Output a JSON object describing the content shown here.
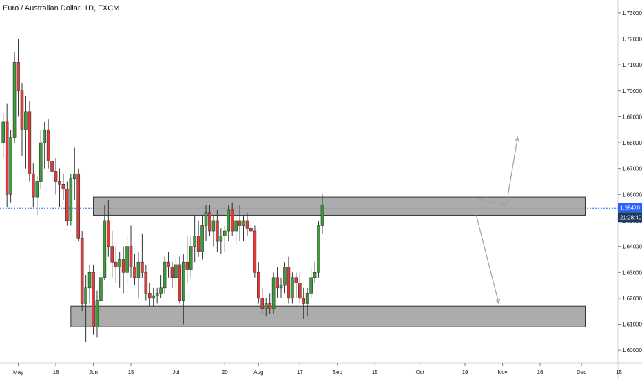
{
  "header": {
    "title": "Euro / Australian Dollar, 1D, FXCM"
  },
  "colors": {
    "up": "#3a9d3a",
    "down": "#e03a3a",
    "zone_fill": "#9e9e9e",
    "zone_stroke": "#333333",
    "price_line": "#2962ff",
    "arrow": "#a0a0a0",
    "badge_price": "#2962ff",
    "badge_time": "#1e3a5f"
  },
  "price_badge": {
    "price": "1.65470",
    "countdown": "21:28:40"
  },
  "chart_data": {
    "type": "candlestick",
    "ylim": [
      1.595,
      1.735
    ],
    "y_ticks": [
      "1.73000",
      "1.72000",
      "1.71000",
      "1.70000",
      "1.69000",
      "1.68000",
      "1.67000",
      "1.66000",
      "1.65000",
      "1.64000",
      "1.63000",
      "1.62000",
      "1.61000",
      "1.60000"
    ],
    "x_ticks": [
      {
        "label": "May",
        "bar": 4
      },
      {
        "label": "18",
        "bar": 14
      },
      {
        "label": "Jun",
        "bar": 24
      },
      {
        "label": "15",
        "bar": 34
      },
      {
        "label": "Jul",
        "bar": 46
      },
      {
        "label": "20",
        "bar": 59
      },
      {
        "label": "Aug",
        "bar": 68
      },
      {
        "label": "17",
        "bar": 79
      },
      {
        "label": "Sep",
        "bar": 89
      },
      {
        "label": "15",
        "bar": 99
      },
      {
        "label": "Oct",
        "bar": 111
      },
      {
        "label": "19",
        "bar": 123
      },
      {
        "label": "Nov",
        "bar": 133
      },
      {
        "label": "16",
        "bar": 143
      },
      {
        "label": "Dec",
        "bar": 154
      },
      {
        "label": "15",
        "bar": 164
      }
    ],
    "candles": [
      [
        1.68,
        1.691,
        1.674,
        1.688
      ],
      [
        1.688,
        1.695,
        1.655,
        1.66
      ],
      [
        1.66,
        1.685,
        1.657,
        1.682
      ],
      [
        1.682,
        1.715,
        1.68,
        1.711
      ],
      [
        1.711,
        1.72,
        1.69,
        1.7
      ],
      [
        1.7,
        1.703,
        1.675,
        1.685
      ],
      [
        1.685,
        1.698,
        1.67,
        1.692
      ],
      [
        1.692,
        1.696,
        1.665,
        1.668
      ],
      [
        1.668,
        1.672,
        1.655,
        1.659
      ],
      [
        1.659,
        1.667,
        1.652,
        1.665
      ],
      [
        1.665,
        1.685,
        1.662,
        1.68
      ],
      [
        1.68,
        1.688,
        1.67,
        1.685
      ],
      [
        1.685,
        1.689,
        1.67,
        1.673
      ],
      [
        1.673,
        1.68,
        1.665,
        1.669
      ],
      [
        1.669,
        1.674,
        1.66,
        1.665
      ],
      [
        1.665,
        1.67,
        1.655,
        1.664
      ],
      [
        1.664,
        1.668,
        1.658,
        1.662
      ],
      [
        1.662,
        1.665,
        1.648,
        1.65
      ],
      [
        1.65,
        1.668,
        1.648,
        1.666
      ],
      [
        1.666,
        1.678,
        1.658,
        1.668
      ],
      [
        1.668,
        1.67,
        1.642,
        1.643
      ],
      [
        1.643,
        1.646,
        1.615,
        1.618
      ],
      [
        1.618,
        1.629,
        1.603,
        1.624
      ],
      [
        1.624,
        1.633,
        1.618,
        1.63
      ],
      [
        1.63,
        1.633,
        1.606,
        1.609
      ],
      [
        1.609,
        1.623,
        1.605,
        1.619
      ],
      [
        1.619,
        1.63,
        1.615,
        1.628
      ],
      [
        1.628,
        1.656,
        1.627,
        1.65
      ],
      [
        1.65,
        1.658,
        1.636,
        1.64
      ],
      [
        1.64,
        1.646,
        1.628,
        1.634
      ],
      [
        1.634,
        1.64,
        1.626,
        1.632
      ],
      [
        1.632,
        1.638,
        1.624,
        1.635
      ],
      [
        1.635,
        1.64,
        1.622,
        1.63
      ],
      [
        1.63,
        1.644,
        1.625,
        1.64
      ],
      [
        1.64,
        1.648,
        1.628,
        1.632
      ],
      [
        1.632,
        1.637,
        1.625,
        1.628
      ],
      [
        1.628,
        1.638,
        1.62,
        1.634
      ],
      [
        1.634,
        1.645,
        1.628,
        1.63
      ],
      [
        1.63,
        1.633,
        1.619,
        1.622
      ],
      [
        1.622,
        1.626,
        1.617,
        1.62
      ],
      [
        1.62,
        1.624,
        1.617,
        1.621
      ],
      [
        1.621,
        1.624,
        1.618,
        1.622
      ],
      [
        1.622,
        1.629,
        1.62,
        1.624
      ],
      [
        1.624,
        1.636,
        1.622,
        1.634
      ],
      [
        1.634,
        1.638,
        1.628,
        1.632
      ],
      [
        1.632,
        1.634,
        1.624,
        1.628
      ],
      [
        1.628,
        1.636,
        1.624,
        1.633
      ],
      [
        1.633,
        1.636,
        1.618,
        1.619
      ],
      [
        1.619,
        1.637,
        1.61,
        1.634
      ],
      [
        1.634,
        1.644,
        1.626,
        1.631
      ],
      [
        1.631,
        1.644,
        1.628,
        1.64
      ],
      [
        1.64,
        1.652,
        1.634,
        1.644
      ],
      [
        1.644,
        1.65,
        1.636,
        1.638
      ],
      [
        1.638,
        1.652,
        1.635,
        1.648
      ],
      [
        1.648,
        1.656,
        1.642,
        1.653
      ],
      [
        1.653,
        1.656,
        1.644,
        1.646
      ],
      [
        1.646,
        1.652,
        1.64,
        1.65
      ],
      [
        1.65,
        1.654,
        1.638,
        1.642
      ],
      [
        1.642,
        1.647,
        1.637,
        1.644
      ],
      [
        1.644,
        1.648,
        1.638,
        1.646
      ],
      [
        1.646,
        1.656,
        1.642,
        1.654
      ],
      [
        1.654,
        1.657,
        1.644,
        1.646
      ],
      [
        1.646,
        1.652,
        1.641,
        1.65
      ],
      [
        1.65,
        1.656,
        1.642,
        1.648
      ],
      [
        1.648,
        1.652,
        1.642,
        1.65
      ],
      [
        1.65,
        1.653,
        1.644,
        1.647
      ],
      [
        1.647,
        1.65,
        1.643,
        1.646
      ],
      [
        1.646,
        1.648,
        1.628,
        1.63
      ],
      [
        1.63,
        1.634,
        1.618,
        1.62
      ],
      [
        1.62,
        1.624,
        1.614,
        1.616
      ],
      [
        1.616,
        1.62,
        1.613,
        1.618
      ],
      [
        1.618,
        1.622,
        1.614,
        1.616
      ],
      [
        1.616,
        1.63,
        1.614,
        1.628
      ],
      [
        1.628,
        1.632,
        1.62,
        1.624
      ],
      [
        1.624,
        1.628,
        1.62,
        1.625
      ],
      [
        1.625,
        1.634,
        1.622,
        1.632
      ],
      [
        1.632,
        1.636,
        1.618,
        1.62
      ],
      [
        1.62,
        1.63,
        1.618,
        1.628
      ],
      [
        1.628,
        1.63,
        1.62,
        1.626
      ],
      [
        1.626,
        1.63,
        1.618,
        1.62
      ],
      [
        1.62,
        1.624,
        1.612,
        1.618
      ],
      [
        1.618,
        1.624,
        1.613,
        1.622
      ],
      [
        1.622,
        1.632,
        1.62,
        1.628
      ],
      [
        1.628,
        1.634,
        1.626,
        1.63
      ],
      [
        1.63,
        1.65,
        1.628,
        1.648
      ],
      [
        1.648,
        1.66,
        1.645,
        1.656
      ]
    ],
    "zones": [
      {
        "low": 1.652,
        "high": 1.659,
        "from_bar": 24,
        "to_bar": 155
      },
      {
        "low": 1.609,
        "high": 1.617,
        "from_bar": 18,
        "to_bar": 155
      }
    ],
    "arrows": [
      {
        "from_bar": 126,
        "from_y": 1.6585,
        "to_bar": 134,
        "to_y": 1.656
      },
      {
        "from_bar": 134,
        "from_y": 1.656,
        "to_bar": 137,
        "to_y": 1.682
      },
      {
        "from_bar": 126,
        "from_y": 1.652,
        "to_bar": 132,
        "to_y": 1.618
      }
    ]
  }
}
